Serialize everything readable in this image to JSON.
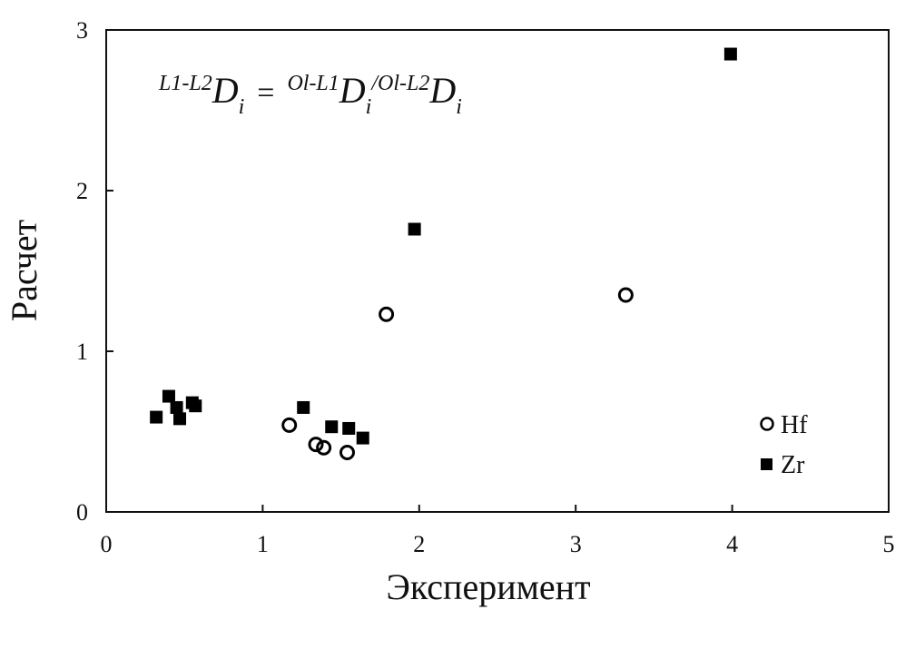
{
  "chart_data": {
    "type": "scatter",
    "title": "",
    "xlabel": "Эксперимент",
    "ylabel": "Расчет",
    "xlim": [
      0,
      5
    ],
    "ylim": [
      0,
      3
    ],
    "x_ticks": [
      "0",
      "1",
      "2",
      "3",
      "4",
      "5"
    ],
    "y_ticks": [
      "0",
      "1",
      "2",
      "3"
    ],
    "grid": false,
    "legend_position": "bottom-right",
    "annotation": {
      "pre1": "L1-L2",
      "d1": "D",
      "s1": "i",
      "eq": "=",
      "pre2": "Ol-L1",
      "d2": "D",
      "s2": "i",
      "slash": "/",
      "pre3": "Ol-L2",
      "d3": "D",
      "s3": "i"
    },
    "series": [
      {
        "name": "Hf",
        "marker": "open-circle",
        "color": "#000000",
        "points": [
          {
            "x": 1.17,
            "y": 0.54
          },
          {
            "x": 1.34,
            "y": 0.42
          },
          {
            "x": 1.39,
            "y": 0.4
          },
          {
            "x": 1.54,
            "y": 0.37
          },
          {
            "x": 1.79,
            "y": 1.23
          },
          {
            "x": 3.32,
            "y": 1.35
          }
        ]
      },
      {
        "name": "Zr",
        "marker": "filled-square",
        "color": "#000000",
        "points": [
          {
            "x": 0.32,
            "y": 0.59
          },
          {
            "x": 0.4,
            "y": 0.72
          },
          {
            "x": 0.45,
            "y": 0.65
          },
          {
            "x": 0.47,
            "y": 0.58
          },
          {
            "x": 0.55,
            "y": 0.68
          },
          {
            "x": 0.57,
            "y": 0.66
          },
          {
            "x": 1.26,
            "y": 0.65
          },
          {
            "x": 1.44,
            "y": 0.53
          },
          {
            "x": 1.55,
            "y": 0.52
          },
          {
            "x": 1.64,
            "y": 0.46
          },
          {
            "x": 1.97,
            "y": 1.76
          },
          {
            "x": 3.99,
            "y": 2.85
          }
        ]
      }
    ]
  }
}
